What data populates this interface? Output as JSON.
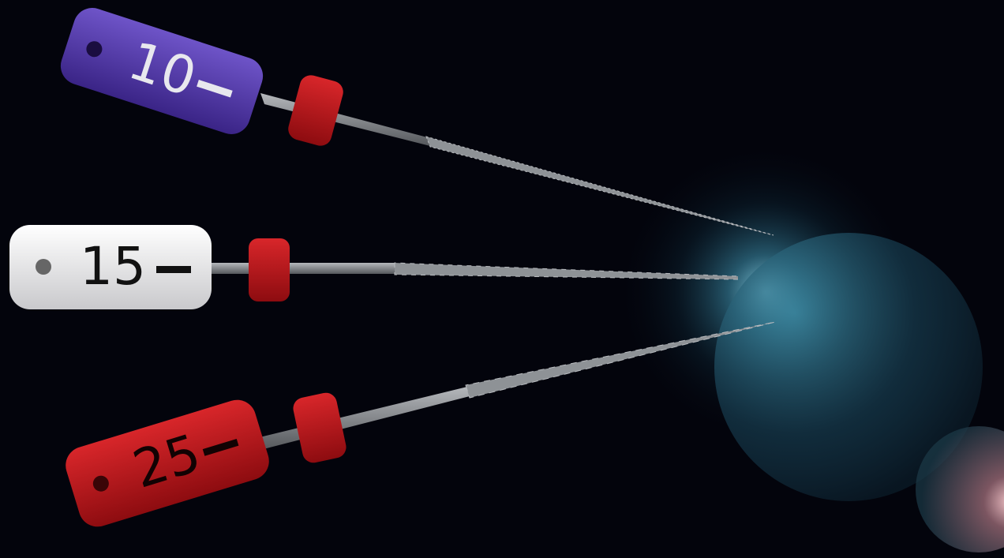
{
  "files": [
    {
      "label": "10"
    },
    {
      "label": "15"
    },
    {
      "label": "25"
    }
  ]
}
